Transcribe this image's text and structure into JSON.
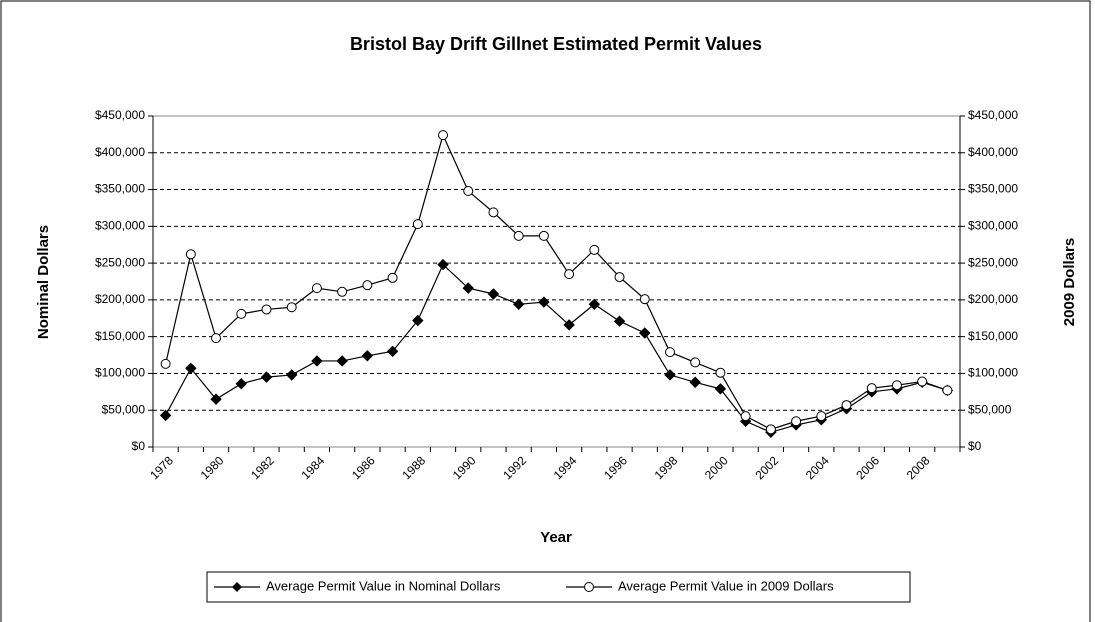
{
  "chart_data": {
    "type": "line",
    "title": "Bristol Bay Drift Gillnet Estimated Permit Values",
    "x_label": "Year",
    "y_label": "Nominal Dollars",
    "y2_label": "2009 Dollars",
    "categories": [
      "1978",
      null,
      "1980",
      null,
      "1982",
      null,
      "1984",
      null,
      "1986",
      null,
      "1988",
      null,
      "1990",
      null,
      "1992",
      null,
      "1994",
      null,
      "1996",
      null,
      "1998",
      null,
      "2000",
      null,
      "2002",
      null,
      "2004",
      null,
      "2006",
      null,
      "2008",
      null
    ],
    "series": [
      {
        "name": "Average Permit Value in Nominal Dollars",
        "color": "#000000",
        "marker": "diamond",
        "values": [
          43000,
          107000,
          65000,
          86000,
          95000,
          98000,
          117000,
          117000,
          124000,
          130000,
          172000,
          248000,
          216000,
          208000,
          194000,
          197000,
          166000,
          194000,
          171000,
          155000,
          98000,
          88000,
          79000,
          35000,
          20000,
          30000,
          37000,
          52000,
          75000,
          79000,
          88000,
          77000
        ]
      },
      {
        "name": "Average Permit Value in 2009 Dollars",
        "color": "#000000",
        "marker": "circle",
        "axis": "y2",
        "values": [
          113000,
          262000,
          148000,
          181000,
          187000,
          190000,
          216000,
          211000,
          220000,
          230000,
          303000,
          424000,
          348000,
          319000,
          287000,
          287000,
          235000,
          268000,
          231000,
          201000,
          129000,
          115000,
          101000,
          42000,
          24000,
          35000,
          42000,
          57000,
          80000,
          84000,
          89000,
          77000
        ]
      }
    ],
    "ylim": [
      0,
      450000
    ],
    "yticks": [
      {
        "value": 0,
        "label": "$0"
      },
      {
        "value": 50000,
        "label": "$50,000"
      },
      {
        "value": 100000,
        "label": "$100,000"
      },
      {
        "value": 150000,
        "label": "$150,000"
      },
      {
        "value": 200000,
        "label": "$200,000"
      },
      {
        "value": 250000,
        "label": "$250,000"
      },
      {
        "value": 300000,
        "label": "$300,000"
      },
      {
        "value": 350000,
        "label": "$350,000"
      },
      {
        "value": 400000,
        "label": "$400,000"
      },
      {
        "value": 450000,
        "label": "$450,000"
      }
    ],
    "y2lim": [
      0,
      450000
    ],
    "y2ticks": [
      {
        "value": 0,
        "label": "$0"
      },
      {
        "value": 50000,
        "label": "$50,000"
      },
      {
        "value": 100000,
        "label": "$100,000"
      },
      {
        "value": 150000,
        "label": "$150,000"
      },
      {
        "value": 200000,
        "label": "$200,000"
      },
      {
        "value": 250000,
        "label": "$250,000"
      },
      {
        "value": 300000,
        "label": "$300,000"
      },
      {
        "value": 350000,
        "label": "$350,000"
      },
      {
        "value": 400000,
        "label": "$400,000"
      },
      {
        "value": 450000,
        "label": "$450,000"
      }
    ],
    "grid": true,
    "legend": "bottom"
  }
}
